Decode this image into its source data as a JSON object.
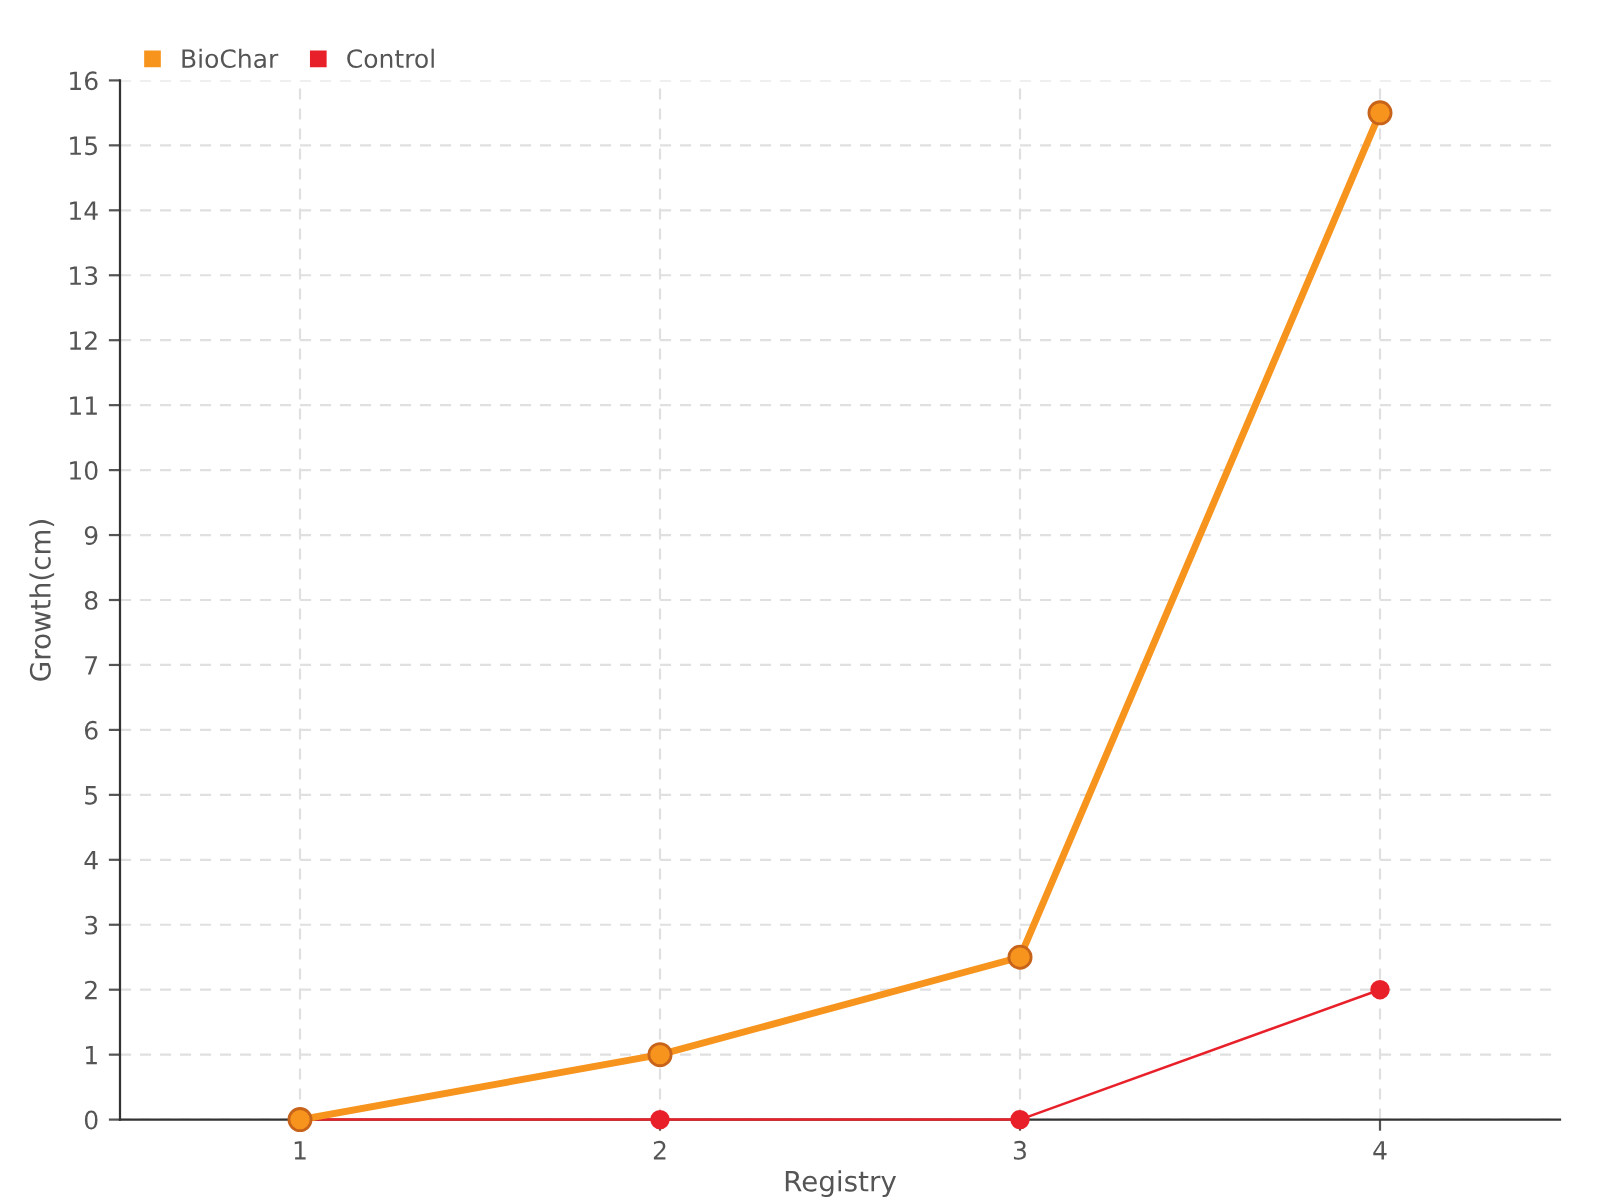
{
  "chart_data": {
    "type": "line",
    "xlabel": "Registry",
    "ylabel": "Growth(cm)",
    "x": [
      1,
      2,
      3,
      4
    ],
    "series": [
      {
        "name": "BioChar",
        "color": "#f7941d",
        "values": [
          0,
          1,
          2.5,
          15.5
        ]
      },
      {
        "name": "Control",
        "color": "#e8202a",
        "values": [
          0,
          0,
          0,
          2
        ]
      }
    ],
    "xlim": [
      0.5,
      4.5
    ],
    "xticks": [
      1,
      2,
      3,
      4
    ],
    "ylim": [
      0,
      16
    ],
    "yticks": [
      0,
      1,
      2,
      3,
      4,
      5,
      6,
      7,
      8,
      9,
      10,
      11,
      12,
      13,
      14,
      15,
      16
    ],
    "grid": true,
    "legend": "top left",
    "marker": "circle",
    "line_style": "solid"
  }
}
